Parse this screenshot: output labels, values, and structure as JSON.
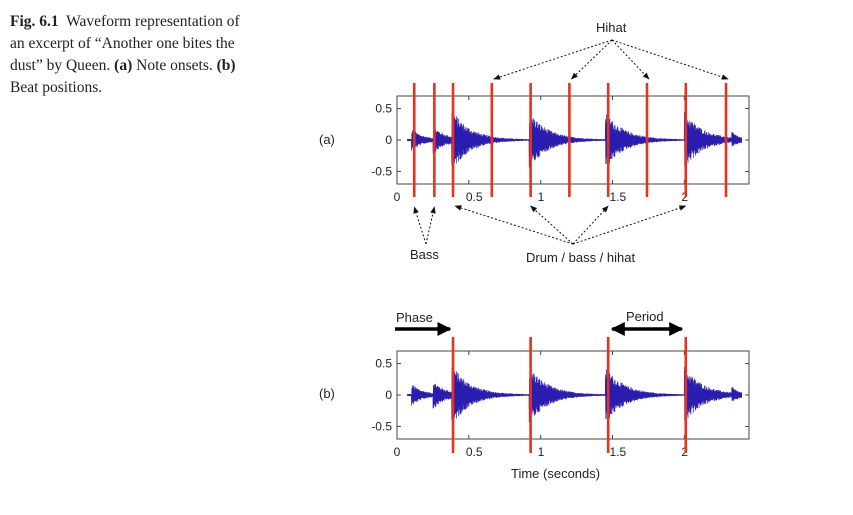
{
  "caption": {
    "fig_label": "Fig. 6.1",
    "text1": "Waveform representation of an excerpt of “Another one bites the dust” by Queen.",
    "a_label": "(a)",
    "a_text": "Note onsets.",
    "b_label": "(b)",
    "b_text": "Beat positions."
  },
  "colors": {
    "waveform": "#2a1eb0",
    "marker": "#e8321e",
    "axes": "#444444"
  },
  "chart_data": [
    {
      "type": "line",
      "panel_label": "(a)",
      "xlim": [
        0,
        2.45
      ],
      "ylim": [
        -0.7,
        0.7
      ],
      "yticks": [
        0.5,
        0,
        -0.5
      ],
      "ytick_labels": [
        "0.5",
        "0",
        "-0.5"
      ],
      "xticks": [
        0,
        0.5,
        1,
        1.5,
        2
      ],
      "xtick_labels": [
        "0",
        "0.5",
        "1",
        "1.5",
        "2"
      ],
      "series": [
        {
          "type": "waveform",
          "bursts": [
            {
              "t": 0.1,
              "amp": 0.18,
              "decay": 0.08
            },
            {
              "t": 0.25,
              "amp": 0.2,
              "decay": 0.09
            },
            {
              "t": 0.38,
              "amp": 0.45,
              "decay": 0.13
            },
            {
              "t": 0.92,
              "amp": 0.45,
              "decay": 0.13
            },
            {
              "t": 1.45,
              "amp": 0.45,
              "decay": 0.13
            },
            {
              "t": 2.0,
              "amp": 0.45,
              "decay": 0.13
            },
            {
              "t": 2.33,
              "amp": 0.1,
              "decay": 0.04
            }
          ]
        },
        {
          "type": "onset_markers",
          "x": [
            0.12,
            0.26,
            0.39,
            0.66,
            0.93,
            1.2,
            1.47,
            1.74,
            2.01,
            2.29
          ]
        }
      ],
      "annotations": {
        "hihat": {
          "text": "Hihat",
          "targets_x": [
            0.66,
            1.2,
            1.74,
            2.29
          ]
        },
        "bass": {
          "text": "Bass",
          "targets_x": [
            0.12,
            0.26
          ]
        },
        "drum": {
          "text": "Drum / bass / hihat",
          "targets_x": [
            0.39,
            0.93,
            1.47,
            2.01
          ]
        }
      }
    },
    {
      "type": "line",
      "panel_label": "(b)",
      "xlim": [
        0,
        2.45
      ],
      "ylim": [
        -0.7,
        0.7
      ],
      "yticks": [
        0.5,
        0,
        -0.5
      ],
      "ytick_labels": [
        "0.5",
        "0",
        "-0.5"
      ],
      "xticks": [
        0,
        0.5,
        1,
        1.5,
        2
      ],
      "xtick_labels": [
        "0",
        "0.5",
        "1",
        "1.5",
        "2"
      ],
      "xlabel": "Time (seconds)",
      "series": [
        {
          "type": "waveform",
          "bursts": [
            {
              "t": 0.1,
              "amp": 0.18,
              "decay": 0.08
            },
            {
              "t": 0.25,
              "amp": 0.2,
              "decay": 0.09
            },
            {
              "t": 0.38,
              "amp": 0.45,
              "decay": 0.13
            },
            {
              "t": 0.92,
              "amp": 0.45,
              "decay": 0.13
            },
            {
              "t": 1.45,
              "amp": 0.45,
              "decay": 0.13
            },
            {
              "t": 2.0,
              "amp": 0.45,
              "decay": 0.13
            },
            {
              "t": 2.33,
              "amp": 0.1,
              "decay": 0.04
            }
          ]
        },
        {
          "type": "beat_markers",
          "x": [
            0.39,
            0.93,
            1.47,
            2.01
          ]
        }
      ],
      "annotations": {
        "phase": {
          "text": "Phase",
          "from_x": 0.0,
          "to_x": 0.39
        },
        "period": {
          "text": "Period",
          "from_x": 1.47,
          "to_x": 2.01
        }
      }
    }
  ]
}
